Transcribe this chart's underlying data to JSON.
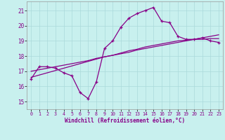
{
  "xlabel": "Windchill (Refroidissement éolien,°C)",
  "background_color": "#c8f0ee",
  "grid_color": "#aadada",
  "line_color": "#880088",
  "xlim": [
    -0.5,
    23.5
  ],
  "ylim": [
    14.5,
    21.6
  ],
  "xticks": [
    0,
    1,
    2,
    3,
    4,
    5,
    6,
    7,
    8,
    9,
    10,
    11,
    12,
    13,
    14,
    15,
    16,
    17,
    18,
    19,
    20,
    21,
    22,
    23
  ],
  "yticks": [
    15,
    16,
    17,
    18,
    19,
    20,
    21
  ],
  "line1_x": [
    0,
    1,
    2,
    3,
    4,
    5,
    6,
    7,
    8,
    9,
    10,
    11,
    12,
    13,
    14,
    15,
    16,
    17,
    18,
    19,
    20,
    21,
    22,
    23
  ],
  "line1_y": [
    16.5,
    17.3,
    17.3,
    17.2,
    16.9,
    16.7,
    15.6,
    15.2,
    16.3,
    18.5,
    19.0,
    19.9,
    20.5,
    20.8,
    21.0,
    21.2,
    20.3,
    20.2,
    19.3,
    19.1,
    19.1,
    19.2,
    19.0,
    18.9
  ],
  "line2_x": [
    0,
    1,
    2,
    3,
    4,
    5,
    6,
    7,
    8,
    9,
    10,
    11,
    12,
    13,
    14,
    15,
    16,
    17,
    18,
    19,
    20,
    21,
    22,
    23
  ],
  "line2_y": [
    17.0,
    17.1,
    17.2,
    17.3,
    17.4,
    17.5,
    17.6,
    17.7,
    17.85,
    17.95,
    18.05,
    18.15,
    18.25,
    18.4,
    18.5,
    18.6,
    18.7,
    18.8,
    18.9,
    19.0,
    19.1,
    19.2,
    19.3,
    19.4
  ],
  "line3_x": [
    0,
    1,
    2,
    3,
    4,
    5,
    6,
    7,
    8,
    9,
    10,
    11,
    12,
    13,
    14,
    15,
    16,
    17,
    18,
    19,
    20,
    21,
    22,
    23
  ],
  "line3_y": [
    16.6,
    16.75,
    16.9,
    17.05,
    17.2,
    17.35,
    17.5,
    17.65,
    17.8,
    17.95,
    18.05,
    18.2,
    18.35,
    18.45,
    18.6,
    18.7,
    18.8,
    18.9,
    19.0,
    19.05,
    19.1,
    19.1,
    19.15,
    19.15
  ]
}
